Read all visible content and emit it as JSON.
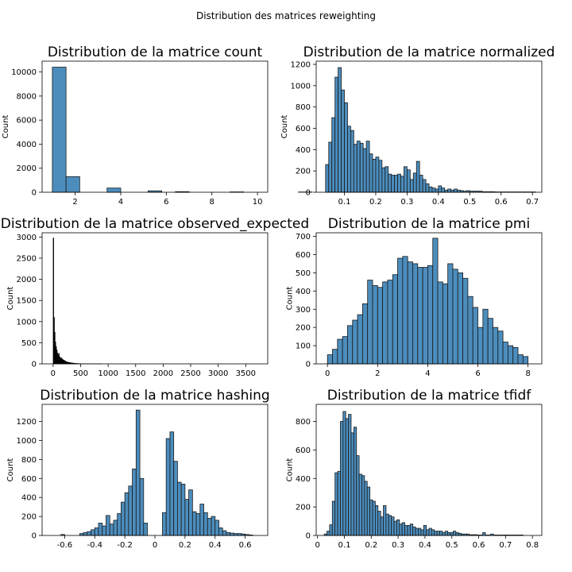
{
  "figure": {
    "suptitle": "Distribution des matrices reweighting"
  },
  "colors": {
    "bar_fill": "#4c8dbd",
    "bar_edge": "#1a1a1a",
    "edge_dense": "#000000"
  },
  "chart_data": [
    {
      "type": "bar",
      "kind": "histogram",
      "title": "Distribution de la matrice count",
      "xlabel": "",
      "ylabel": "Count",
      "xlim": [
        0.55,
        10.45
      ],
      "ylim": [
        0,
        10900
      ],
      "xticks": [
        2,
        4,
        6,
        8,
        10
      ],
      "yticks": [
        0,
        2000,
        4000,
        6000,
        8000,
        10000
      ],
      "bins": {
        "start": 1,
        "width": 0.6
      },
      "values": [
        10400,
        1300,
        0,
        0,
        350,
        0,
        0,
        120,
        0,
        50,
        0,
        0,
        0,
        30,
        0,
        0,
        0,
        0,
        25,
        0,
        0,
        0,
        0,
        0,
        0,
        0,
        0,
        0,
        0,
        0,
        0,
        0,
        0,
        0,
        0,
        0
      ]
    },
    {
      "type": "bar",
      "kind": "histogram",
      "title": "Distribution de la matrice normalized",
      "xlabel": "",
      "ylabel": "Count",
      "xlim": [
        0.01,
        0.73
      ],
      "ylim": [
        0,
        1230
      ],
      "xticks": [
        0.1,
        0.2,
        0.3,
        0.4,
        0.5,
        0.6,
        0.7
      ],
      "yticks": [
        0,
        200,
        400,
        600,
        800,
        1000,
        1200
      ],
      "bins": {
        "start": 0.04,
        "width": 0.01
      },
      "values": [
        260,
        470,
        700,
        1080,
        1170,
        960,
        840,
        620,
        580,
        450,
        480,
        460,
        410,
        480,
        360,
        310,
        330,
        300,
        230,
        240,
        170,
        160,
        160,
        170,
        150,
        240,
        210,
        120,
        180,
        290,
        160,
        120,
        80,
        50,
        40,
        30,
        60,
        40,
        20,
        30,
        20,
        30,
        20,
        15,
        10,
        15,
        10,
        10,
        10,
        10,
        5,
        5,
        5,
        5,
        3,
        3,
        3,
        3,
        3,
        3,
        3,
        3,
        3,
        3,
        3,
        3,
        3
      ]
    },
    {
      "type": "bar",
      "kind": "histogram",
      "title": "Distribution de la matrice observed_expected",
      "xlabel": "",
      "ylabel": "Count",
      "xlim": [
        -200,
        3900
      ],
      "ylim": [
        0,
        3100
      ],
      "xticks": [
        0,
        500,
        1000,
        1500,
        2000,
        2500,
        3000,
        3500
      ],
      "yticks": [
        0,
        500,
        1000,
        1500,
        2000,
        2500,
        3000
      ],
      "bins": {
        "start": 0,
        "width": 12.5
      },
      "values": [
        2980,
        1100,
        750,
        520,
        410,
        330,
        260,
        210,
        250,
        170,
        150,
        130,
        140,
        110,
        100,
        90,
        80,
        70,
        60,
        50,
        45,
        40,
        38,
        35,
        30,
        28,
        25,
        22,
        20,
        18,
        16,
        15,
        14,
        12,
        10,
        10,
        9,
        8,
        7,
        6,
        6,
        5,
        5,
        4,
        4,
        3,
        3,
        3,
        3,
        2,
        2,
        2,
        2,
        2,
        2,
        2,
        2,
        2,
        2,
        2,
        2,
        2,
        2,
        2,
        2,
        2,
        2,
        2,
        2,
        2
      ]
    },
    {
      "type": "bar",
      "kind": "histogram",
      "title": "Distribution de la matrice pmi",
      "xlabel": "",
      "ylabel": "Count",
      "xlim": [
        -0.45,
        8.55
      ],
      "ylim": [
        0,
        720
      ],
      "xticks": [
        0,
        2,
        4,
        6,
        8
      ],
      "yticks": [
        0,
        100,
        200,
        300,
        400,
        500,
        600,
        700
      ],
      "bins": {
        "start": 0,
        "width": 0.2
      },
      "values": [
        50,
        80,
        135,
        150,
        210,
        240,
        270,
        330,
        460,
        430,
        420,
        450,
        460,
        490,
        580,
        590,
        560,
        550,
        530,
        530,
        540,
        690,
        450,
        440,
        550,
        520,
        500,
        470,
        370,
        310,
        200,
        300,
        250,
        200,
        180,
        120,
        100,
        90,
        50,
        40
      ]
    },
    {
      "type": "bar",
      "kind": "histogram",
      "title": "Distribution de la matrice hashing",
      "xlabel": "",
      "ylabel": "Count",
      "xlim": [
        -0.75,
        0.75
      ],
      "ylim": [
        0,
        1380
      ],
      "xticks": [
        -0.6,
        -0.4,
        -0.2,
        0.0,
        0.2,
        0.4,
        0.6
      ],
      "yticks": [
        0,
        200,
        400,
        600,
        800,
        1000,
        1200
      ],
      "bins": {
        "start": -0.7,
        "width": 0.025
      },
      "values": [
        0,
        0,
        0,
        10,
        0,
        0,
        0,
        0,
        20,
        30,
        40,
        60,
        80,
        130,
        100,
        210,
        120,
        160,
        230,
        350,
        450,
        520,
        700,
        1320,
        600,
        130,
        0,
        0,
        0,
        0,
        240,
        1020,
        1090,
        780,
        560,
        540,
        380,
        480,
        250,
        230,
        330,
        240,
        180,
        200,
        160,
        80,
        50,
        30,
        25,
        20,
        20,
        15,
        10,
        5,
        0,
        0,
        0,
        0,
        0,
        0
      ]
    },
    {
      "type": "bar",
      "kind": "histogram",
      "title": "Distribution de la matrice tfidf",
      "xlabel": "",
      "ylabel": "Count",
      "xlim": [
        -0.005,
        0.835
      ],
      "ylim": [
        0,
        920
      ],
      "xticks": [
        0.0,
        0.1,
        0.2,
        0.3,
        0.4,
        0.5,
        0.6,
        0.7,
        0.8
      ],
      "yticks": [
        0,
        200,
        400,
        600,
        800
      ],
      "bins": {
        "start": 0.025,
        "width": 0.01
      },
      "values": [
        10,
        30,
        75,
        240,
        440,
        450,
        800,
        870,
        820,
        850,
        720,
        760,
        560,
        430,
        420,
        380,
        340,
        250,
        240,
        210,
        170,
        130,
        210,
        150,
        140,
        130,
        100,
        110,
        80,
        90,
        70,
        70,
        80,
        60,
        50,
        50,
        40,
        70,
        40,
        50,
        40,
        30,
        30,
        30,
        20,
        30,
        20,
        20,
        30,
        20,
        15,
        10,
        10,
        10,
        5,
        5,
        5,
        3,
        3,
        20,
        3,
        3,
        10,
        3,
        3,
        3,
        3,
        3,
        3,
        3,
        3,
        3,
        3,
        3
      ]
    }
  ]
}
